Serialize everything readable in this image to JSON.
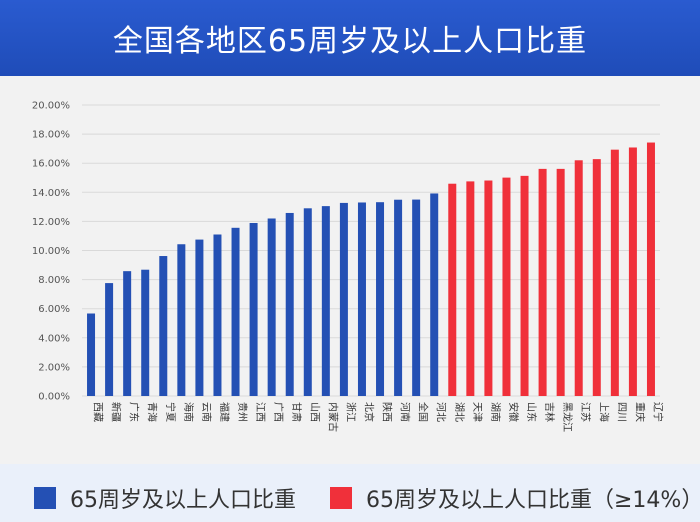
{
  "header": {
    "title": "全国各地区65周岁及以上人口比重"
  },
  "legend": {
    "items": [
      {
        "label": "65周岁及以上人口比重",
        "color": "#2450b4"
      },
      {
        "label": "65周岁及以上人口比重（≥14%）",
        "color": "#f0303a"
      }
    ]
  },
  "chart_data": {
    "type": "bar",
    "title": "全国各地区65周岁及以上人口比重",
    "xlabel": "",
    "ylabel": "",
    "ylim": [
      0,
      20
    ],
    "yticks": [
      "0.00%",
      "2.00%",
      "4.00%",
      "6.00%",
      "8.00%",
      "10.00%",
      "12.00%",
      "14.00%",
      "16.00%",
      "18.00%",
      "20.00%"
    ],
    "grid": true,
    "legend_position": "bottom",
    "threshold": 14,
    "colors": {
      "below": "#2450b4",
      "above": "#f0303a"
    },
    "categories": [
      "西藏",
      "新疆",
      "广东",
      "青海",
      "宁夏",
      "海南",
      "云南",
      "福建",
      "贵州",
      "江西",
      "广西",
      "甘肃",
      "山西",
      "内蒙古",
      "浙江",
      "北京",
      "陕西",
      "河南",
      "全国",
      "河北",
      "湖北",
      "天津",
      "湖南",
      "安徽",
      "山东",
      "吉林",
      "黑龙江",
      "江苏",
      "上海",
      "四川",
      "重庆",
      "辽宁"
    ],
    "values": [
      5.67,
      7.76,
      8.58,
      8.68,
      9.62,
      10.43,
      10.75,
      11.1,
      11.56,
      11.89,
      12.2,
      12.58,
      12.9,
      13.05,
      13.27,
      13.3,
      13.32,
      13.49,
      13.5,
      13.92,
      14.59,
      14.75,
      14.81,
      15.01,
      15.13,
      15.61,
      15.61,
      16.2,
      16.28,
      16.93,
      17.08,
      17.42
    ]
  }
}
